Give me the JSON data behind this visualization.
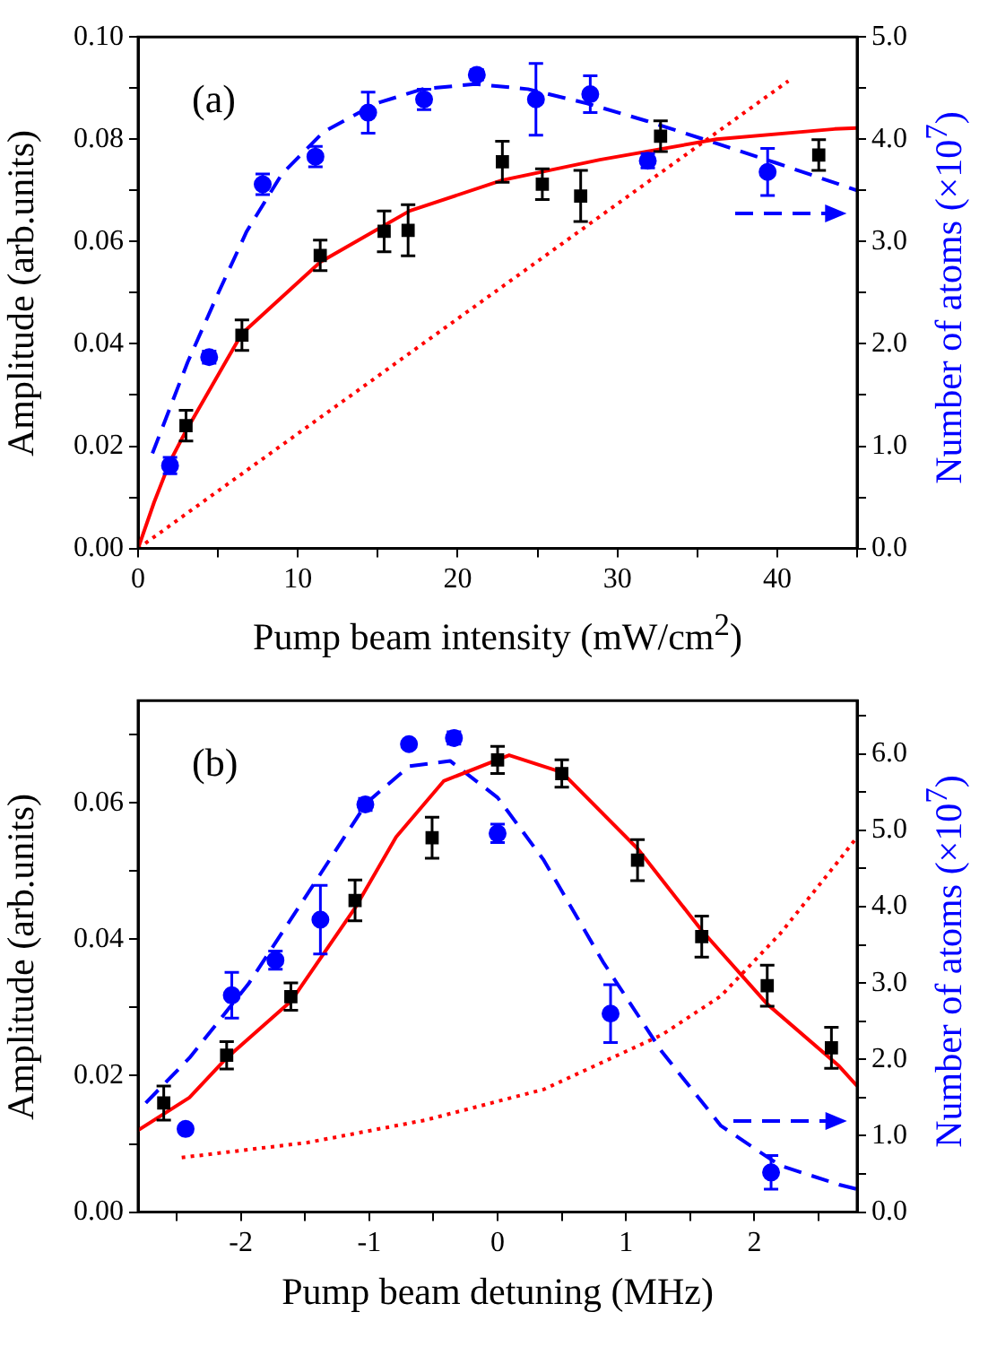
{
  "chart_data": [
    {
      "type": "scatter",
      "title": "(a)",
      "xlabel": "Pump beam intensity (mW/cm$^{2}$)",
      "ylabel": "Amplitude (arb.units)",
      "y2label": "Number of atoms (×10$^{7}$)",
      "xlim": [
        0,
        45
      ],
      "xticks": [
        0,
        {
          "value": 5,
          "label": null
        },
        10,
        {
          "value": 15,
          "label": null
        },
        20,
        {
          "value": 25,
          "label": null
        },
        30,
        {
          "value": 35,
          "label": null
        },
        40,
        {
          "value": 45,
          "label": null
        }
      ],
      "ylim": [
        0,
        0.1
      ],
      "yticks": [
        {
          "value": 0,
          "label": "0.00"
        },
        {
          "value": 0.01,
          "label": null
        },
        {
          "value": 0.02,
          "label": "0.02"
        },
        {
          "value": 0.03,
          "label": null
        },
        {
          "value": 0.04,
          "label": "0.04"
        },
        {
          "value": 0.05,
          "label": null
        },
        {
          "value": 0.06,
          "label": "0.06"
        },
        {
          "value": 0.07,
          "label": null
        },
        {
          "value": 0.08,
          "label": "0.08"
        },
        {
          "value": 0.09,
          "label": null
        },
        {
          "value": 0.1,
          "label": "0.10"
        }
      ],
      "y2lim": [
        0,
        5
      ],
      "y2ticks": [
        {
          "value": 0,
          "label": "0.0"
        },
        {
          "value": 0.5,
          "label": null
        },
        {
          "value": 1,
          "label": "1.0"
        },
        {
          "value": 1.5,
          "label": null
        },
        {
          "value": 2,
          "label": "2.0"
        },
        {
          "value": 2.5,
          "label": null
        },
        {
          "value": 3,
          "label": "3.0"
        },
        {
          "value": 3.5,
          "label": null
        },
        {
          "value": 4,
          "label": "4.0"
        },
        {
          "value": 4.5,
          "label": null
        },
        {
          "value": 5,
          "label": "5.0"
        }
      ],
      "grid": false,
      "legend": false,
      "series": [
        {
          "type": "line",
          "color": "#ff0000",
          "marker": "none",
          "line_style": "solid",
          "x": [
            0,
            1,
            2,
            3,
            6.5,
            11.4,
            17,
            22.8,
            28.9,
            36.2,
            43.6,
            45
          ],
          "values": [
            0,
            0.009,
            0.017,
            0.023,
            0.042,
            0.056,
            0.066,
            0.072,
            0.076,
            0.08,
            0.082,
            0.0822
          ]
        },
        {
          "type": "line",
          "color": "#ff0000",
          "marker": "none",
          "line_style": "dotted",
          "x": [
            0,
            40.7
          ],
          "values": [
            0,
            0.0914
          ]
        },
        {
          "type": "line",
          "axis": "y2",
          "color": "#0000ff",
          "marker": "none",
          "line_style": "dashed",
          "x": [
            0.9,
            3.1,
            5,
            6.8,
            9,
            11.6,
            14.9,
            17.8,
            21.1,
            24.4,
            28.1,
            31.8,
            36.2,
            39.9,
            45
          ],
          "values": [
            0.93,
            1.82,
            2.49,
            3.1,
            3.66,
            4.07,
            4.35,
            4.49,
            4.54,
            4.49,
            4.35,
            4.18,
            3.96,
            3.77,
            3.5
          ]
        },
        {
          "type": "scatter",
          "color": "#000000",
          "marker": "square",
          "x": [
            3,
            6.5,
            11.4,
            15.4,
            16.9,
            22.8,
            25.3,
            27.7,
            32.7,
            42.6
          ],
          "values": [
            0.024,
            0.0417,
            0.0573,
            0.062,
            0.0622,
            0.0756,
            0.0712,
            0.0689,
            0.0806,
            0.0769
          ],
          "errors": [
            0.003,
            0.003,
            0.003,
            0.004,
            0.005,
            0.004,
            0.003,
            0.005,
            0.003,
            0.003
          ]
        },
        {
          "type": "scatter",
          "axis": "y2",
          "color": "#0000ff",
          "marker": "circle",
          "x": [
            2,
            4.45,
            7.8,
            11.1,
            14.4,
            17.9,
            21.2,
            24.9,
            28.3,
            31.9,
            39.4
          ],
          "values": [
            0.81,
            1.87,
            3.56,
            3.83,
            4.26,
            4.39,
            4.63,
            4.39,
            4.44,
            3.79,
            3.68
          ],
          "errors": [
            0.08,
            0.06,
            0.1,
            0.1,
            0.2,
            0.1,
            0.05,
            0.35,
            0.18,
            0.07,
            0.23
          ]
        }
      ]
    },
    {
      "type": "scatter",
      "title": "(b)",
      "xlabel": "Pump beam detuning (MHz)",
      "ylabel": "Amplitude (arb.units)",
      "y2label": "Number of atoms (×10$^{7}$)",
      "xlim": [
        -2.8,
        2.8
      ],
      "xticks": [
        {
          "value": -2.5,
          "label": null
        },
        -2,
        {
          "value": -1.5,
          "label": null
        },
        -1,
        {
          "value": -0.5,
          "label": null
        },
        0,
        {
          "value": 0.5,
          "label": null
        },
        1,
        {
          "value": 1.5,
          "label": null
        },
        2,
        {
          "value": 2.5,
          "label": null
        }
      ],
      "ylim": [
        0,
        0.075
      ],
      "yticks": [
        {
          "value": 0,
          "label": "0.00"
        },
        {
          "value": 0.01,
          "label": null
        },
        {
          "value": 0.02,
          "label": "0.02"
        },
        {
          "value": 0.03,
          "label": null
        },
        {
          "value": 0.04,
          "label": "0.04"
        },
        {
          "value": 0.05,
          "label": null
        },
        {
          "value": 0.06,
          "label": "0.06"
        },
        {
          "value": 0.07,
          "label": null
        }
      ],
      "y2lim": [
        0,
        6.7
      ],
      "y2ticks": [
        {
          "value": 0,
          "label": "0.0"
        },
        {
          "value": 0.5,
          "label": null
        },
        {
          "value": 1,
          "label": "1.0"
        },
        {
          "value": 1.5,
          "label": null
        },
        {
          "value": 2,
          "label": "2.0"
        },
        {
          "value": 2.5,
          "label": null
        },
        {
          "value": 3,
          "label": "3.0"
        },
        {
          "value": 3.5,
          "label": null
        },
        {
          "value": 4,
          "label": "4.0"
        },
        {
          "value": 4.5,
          "label": null
        },
        {
          "value": 5,
          "label": "5.0"
        },
        {
          "value": 5.5,
          "label": null
        },
        {
          "value": 6,
          "label": "6.0"
        },
        {
          "value": 6.5,
          "label": null
        }
      ],
      "grid": false,
      "legend": false,
      "series": [
        {
          "type": "line",
          "color": "#ff0000",
          "marker": "none",
          "line_style": "solid",
          "x": [
            -2.8,
            -2.4,
            -2.11,
            -1.61,
            -1.11,
            -0.79,
            -0.42,
            0.09,
            0.5,
            1.09,
            1.59,
            2.1,
            2.66,
            2.8
          ],
          "values": [
            0.012,
            0.0168,
            0.0226,
            0.0309,
            0.0446,
            0.055,
            0.0632,
            0.067,
            0.0645,
            0.0533,
            0.0413,
            0.0305,
            0.0214,
            0.0185
          ]
        },
        {
          "type": "line",
          "color": "#ff0000",
          "marker": "none",
          "line_style": "dotted",
          "x": [
            -2.46,
            -1.48,
            -0.56,
            0.36,
            1.28,
            1.74,
            2.2,
            2.66,
            2.8
          ],
          "values": [
            0.008,
            0.0102,
            0.0135,
            0.018,
            0.026,
            0.0317,
            0.0408,
            0.0516,
            0.055
          ]
        },
        {
          "type": "line",
          "axis": "y2",
          "color": "#0000ff",
          "marker": "none",
          "line_style": "dashed",
          "x": [
            -2.74,
            -2.4,
            -1.94,
            -1.48,
            -1.02,
            -0.69,
            -0.37,
            0,
            0.36,
            0.82,
            1.28,
            1.74,
            2.2,
            2.66,
            2.8
          ],
          "values": [
            1.43,
            2.02,
            2.99,
            4.17,
            5.36,
            5.84,
            5.91,
            5.43,
            4.61,
            3.28,
            2.1,
            1.13,
            0.61,
            0.36,
            0.3
          ]
        },
        {
          "type": "scatter",
          "color": "#000000",
          "marker": "square",
          "x": [
            -2.6,
            -2.11,
            -1.61,
            -1.11,
            -0.51,
            0,
            0.5,
            1.09,
            1.59,
            2.1,
            2.6
          ],
          "values": [
            0.016,
            0.023,
            0.0316,
            0.0457,
            0.0549,
            0.0663,
            0.0643,
            0.0516,
            0.0404,
            0.0332,
            0.0241
          ],
          "errors": [
            0.0025,
            0.002,
            0.002,
            0.003,
            0.003,
            0.002,
            0.002,
            0.003,
            0.003,
            0.003,
            0.003
          ]
        },
        {
          "type": "scatter",
          "axis": "y2",
          "color": "#0000ff",
          "marker": "circle",
          "x": [
            -2.43,
            -2.07,
            -1.73,
            -1.38,
            -1.03,
            -0.69,
            -0.34,
            0,
            0.88,
            2.13
          ],
          "values": [
            1.09,
            2.84,
            3.3,
            3.83,
            5.34,
            6.13,
            6.21,
            4.96,
            2.6,
            0.52
          ],
          "errors": [
            null,
            0.3,
            0.12,
            0.45,
            0.08,
            null,
            0.08,
            0.12,
            0.38,
            0.22
          ]
        }
      ]
    }
  ]
}
